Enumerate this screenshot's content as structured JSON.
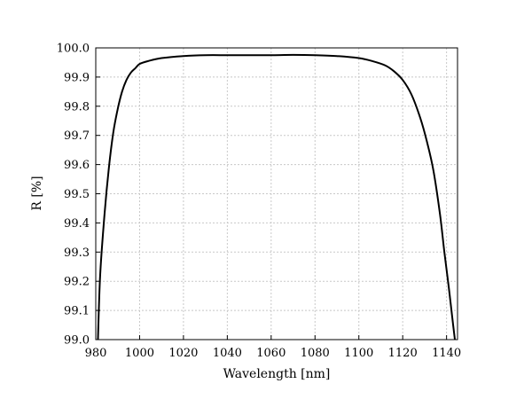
{
  "chart_data": {
    "type": "line",
    "title": "",
    "xlabel": "Wavelength [nm]",
    "ylabel": "R [%]",
    "xlim": [
      980,
      1145
    ],
    "ylim": [
      99.0,
      100.0
    ],
    "x_ticks": [
      980,
      1000,
      1020,
      1040,
      1060,
      1080,
      1100,
      1120,
      1140
    ],
    "y_ticks": [
      "99.0",
      "99.1",
      "99.2",
      "99.3",
      "99.4",
      "99.5",
      "99.6",
      "99.7",
      "99.8",
      "99.9",
      "100.0"
    ],
    "grid": true,
    "series": [
      {
        "color": "#000000",
        "x": [
          981,
          982,
          984,
          986,
          988,
          990,
          992,
          994,
          996,
          998,
          1000,
          1004,
          1010,
          1020,
          1030,
          1040,
          1050,
          1060,
          1070,
          1080,
          1090,
          1100,
          1106,
          1112,
          1116,
          1120,
          1124,
          1128,
          1131,
          1134,
          1137,
          1139,
          1141,
          1143,
          1143.8
        ],
        "y": [
          99.0,
          99.22,
          99.43,
          99.59,
          99.71,
          99.79,
          99.85,
          99.89,
          99.915,
          99.93,
          99.945,
          99.955,
          99.965,
          99.972,
          99.975,
          99.975,
          99.975,
          99.975,
          99.976,
          99.975,
          99.972,
          99.965,
          99.955,
          99.94,
          99.92,
          99.89,
          99.84,
          99.76,
          99.68,
          99.58,
          99.43,
          99.3,
          99.18,
          99.05,
          99.0
        ]
      }
    ]
  }
}
